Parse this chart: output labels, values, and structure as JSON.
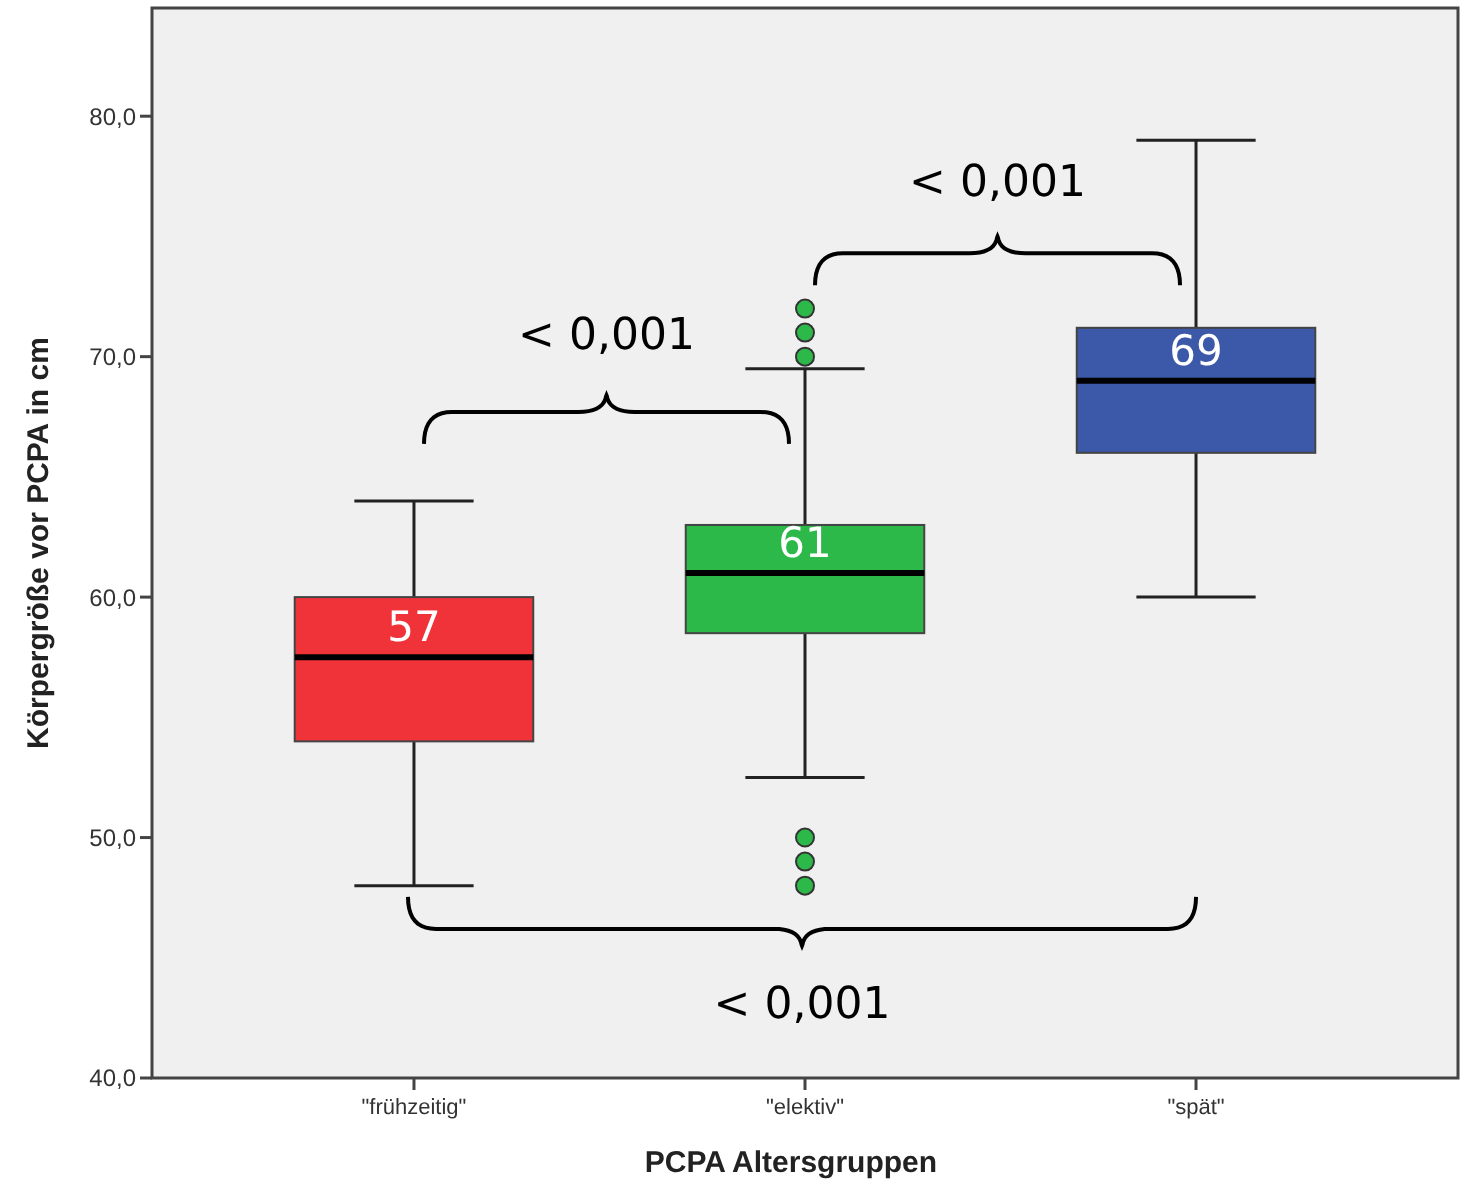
{
  "chart_data": {
    "type": "box",
    "xlabel": "PCPA Altersgruppen",
    "ylabel": "Körpergröße vor PCPA in cm",
    "categories": [
      "\"frühzeitig\"",
      "\"elektiv\"",
      "\"spät\""
    ],
    "colors": [
      "#ef3339",
      "#2db84a",
      "#3c58a8"
    ],
    "boxes": [
      {
        "low": 48,
        "q1": 54,
        "median": 57.5,
        "q3": 60,
        "high": 64
      },
      {
        "low": 52.5,
        "q1": 58.5,
        "median": 61,
        "q3": 63,
        "high": 69.5,
        "outliers": [
          72,
          71,
          70,
          50,
          49,
          48
        ]
      },
      {
        "low": 60,
        "q1": 66,
        "median": 69,
        "q3": 71.2,
        "high": 79
      }
    ],
    "ylim": [
      40,
      84.5
    ],
    "yticks": [
      {
        "value": 40,
        "label": "40,0"
      },
      {
        "value": 50,
        "label": "50,0"
      },
      {
        "value": 60,
        "label": "60,0"
      },
      {
        "value": 70,
        "label": "70,0"
      },
      {
        "value": 80,
        "label": "80,0"
      }
    ],
    "grid": false,
    "annotations": [
      {
        "text": "57",
        "x": "\"frühzeitig\"",
        "y": 57.5
      },
      {
        "text": "61",
        "x": "\"elektiv\"",
        "y": 61
      },
      {
        "text": "69",
        "x": "\"spät\"",
        "y": 69
      },
      "< 0,001",
      "< 0,001",
      "< 0,001"
    ]
  }
}
